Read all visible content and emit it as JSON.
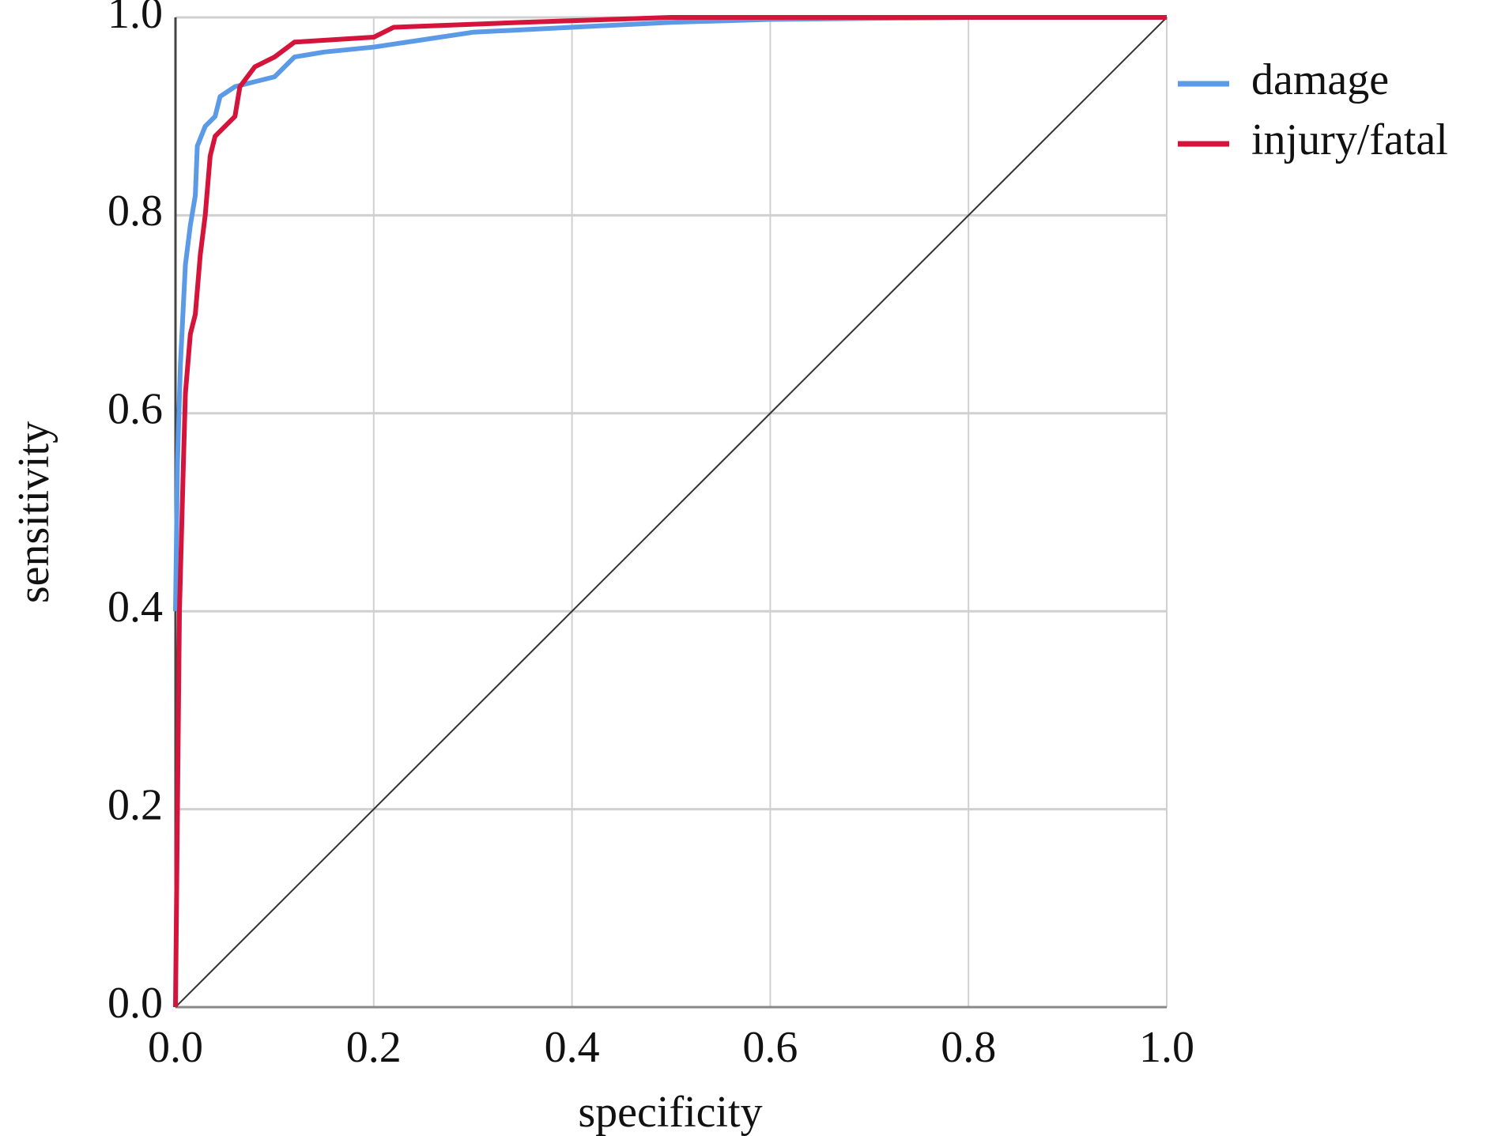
{
  "chart_data": {
    "type": "line",
    "x_label": "specificity",
    "y_label": "sensitivity",
    "xlim": [
      0,
      1
    ],
    "ylim": [
      0,
      1
    ],
    "xticks": [
      {
        "value": 0,
        "label": "0.0"
      },
      0.2,
      0.4,
      0.6,
      0.8,
      {
        "value": 1,
        "label": "1.0"
      }
    ],
    "yticks": [
      {
        "value": 0,
        "label": "0.0"
      },
      0.2,
      0.4,
      0.6,
      0.8,
      {
        "value": 1,
        "label": "1.0"
      }
    ],
    "grid": true,
    "legend": "upper right outside",
    "series": [
      {
        "name": "damage",
        "color": "#5b9ae6",
        "x": [
          0,
          0.002,
          0.005,
          0.01,
          0.015,
          0.02,
          0.022,
          0.03,
          0.04,
          0.045,
          0.06,
          0.08,
          0.1,
          0.12,
          0.15,
          0.2,
          0.3,
          0.4,
          0.5,
          0.6,
          0.8,
          1
        ],
        "values": [
          0.4,
          0.55,
          0.65,
          0.75,
          0.79,
          0.82,
          0.87,
          0.89,
          0.9,
          0.92,
          0.93,
          0.935,
          0.94,
          0.96,
          0.965,
          0.97,
          0.985,
          0.99,
          0.995,
          0.998,
          1,
          1
        ]
      },
      {
        "name": "injury/fatal",
        "color": "#d4143a",
        "x": [
          0,
          0.002,
          0.004,
          0.008,
          0.01,
          0.015,
          0.02,
          0.025,
          0.03,
          0.035,
          0.04,
          0.05,
          0.06,
          0.065,
          0.08,
          0.1,
          0.12,
          0.2,
          0.22,
          0.35,
          0.5,
          1
        ],
        "values": [
          0,
          0.2,
          0.4,
          0.55,
          0.62,
          0.68,
          0.7,
          0.76,
          0.8,
          0.86,
          0.88,
          0.89,
          0.9,
          0.93,
          0.95,
          0.96,
          0.975,
          0.98,
          0.99,
          0.995,
          1,
          1
        ]
      }
    ]
  }
}
